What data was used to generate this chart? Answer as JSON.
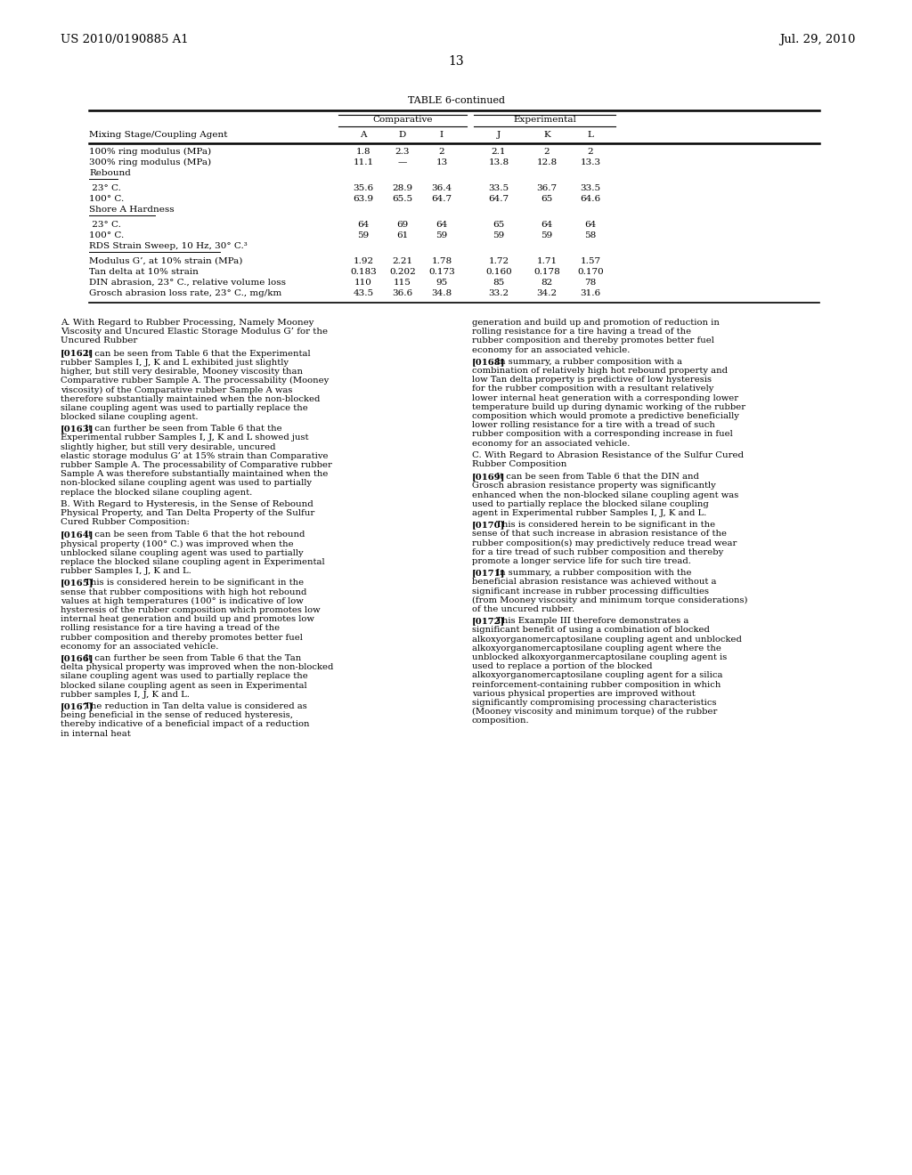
{
  "bg_color": "#ffffff",
  "header_left": "US 2010/0190885 A1",
  "header_right": "Jul. 29, 2010",
  "page_number": "13",
  "table_title": "TABLE 6-continued",
  "table_headers_group1": "Comparative",
  "table_headers_group2": "Experimental",
  "col_headers": [
    "A",
    "D",
    "I",
    "J",
    "K",
    "L"
  ],
  "row_label_col": "Mixing Stage/Coupling Agent",
  "table_rows": [
    {
      "label": "100% ring modulus (MPa)",
      "values": [
        "1.8",
        "2.3",
        "2",
        "2.1",
        "2",
        "2"
      ],
      "section_label": false
    },
    {
      "label": "300% ring modulus (MPa)",
      "values": [
        "11.1",
        "—",
        "13",
        "13.8",
        "12.8",
        "13.3"
      ],
      "section_label": false
    },
    {
      "label": "Rebound",
      "values": [
        "",
        "",
        "",
        "",
        "",
        ""
      ],
      "section_label": true
    },
    {
      "label": " 23° C.",
      "values": [
        "35.6",
        "28.9",
        "36.4",
        "33.5",
        "36.7",
        "33.5"
      ],
      "section_label": false
    },
    {
      "label": "100° C.",
      "values": [
        "63.9",
        "65.5",
        "64.7",
        "64.7",
        "65",
        "64.6"
      ],
      "section_label": false
    },
    {
      "label": "Shore A Hardness",
      "values": [
        "",
        "",
        "",
        "",
        "",
        ""
      ],
      "section_label": true
    },
    {
      "label": " 23° C.",
      "values": [
        "64",
        "69",
        "64",
        "65",
        "64",
        "64"
      ],
      "section_label": false
    },
    {
      "label": "100° C.",
      "values": [
        "59",
        "61",
        "59",
        "59",
        "59",
        "58"
      ],
      "section_label": false
    },
    {
      "label": "RDS Strain Sweep, 10 Hz, 30° C.³",
      "values": [
        "",
        "",
        "",
        "",
        "",
        ""
      ],
      "section_label": true
    },
    {
      "label": "Modulus G’, at 10% strain (MPa)",
      "values": [
        "1.92",
        "2.21",
        "1.78",
        "1.72",
        "1.71",
        "1.57"
      ],
      "section_label": false
    },
    {
      "label": "Tan delta at 10% strain",
      "values": [
        "0.183",
        "0.202",
        "0.173",
        "0.160",
        "0.178",
        "0.170"
      ],
      "section_label": false
    },
    {
      "label": "DIN abrasion, 23° C., relative volume loss",
      "values": [
        "110",
        "115",
        "95",
        "85",
        "82",
        "78"
      ],
      "section_label": false
    },
    {
      "label": "Grosch abrasion loss rate, 23° C., mg/km",
      "values": [
        "43.5",
        "36.6",
        "34.8",
        "33.2",
        "34.2",
        "31.6"
      ],
      "section_label": false
    }
  ],
  "body_left": [
    {
      "type": "section_header",
      "text": "A. With Regard to Rubber Processing, Namely Mooney Viscosity and Uncured Elastic Storage Modulus G’ for the Uncured Rubber"
    },
    {
      "type": "paragraph",
      "tag": "[0162]",
      "text": "It can be seen from Table 6 that the Experimental rubber Samples I, J, K and L exhibited just slightly higher, but still very desirable, Mooney viscosity than Comparative rubber Sample A. The processability (Mooney viscosity) of the Comparative rubber Sample A was therefore substantially maintained when the non-blocked silane coupling agent was used to partially replace the blocked silane coupling agent."
    },
    {
      "type": "paragraph",
      "tag": "[0163]",
      "text": "It can further be seen from Table 6 that the Experimental rubber Samples I, J, K and L showed just slightly higher, but still very desirable, uncured elastic storage modulus G’ at 15% strain than Comparative rubber Sample A. The processability of Comparative rubber Sample A was therefore substantially maintained when the non-blocked silane coupling agent was used to partially replace the blocked silane coupling agent."
    },
    {
      "type": "section_header",
      "text": "B. With Regard to Hysteresis, in the Sense of Rebound Physical Property, and Tan Delta Property of the Sulfur Cured Rubber Composition:"
    },
    {
      "type": "paragraph",
      "tag": "[0164]",
      "text": "It can be seen from Table 6 that the hot rebound physical property (100° C.) was improved when the unblocked silane coupling agent was used to partially replace the blocked silane coupling agent in Experimental rubber Samples I, J, K and L."
    },
    {
      "type": "paragraph",
      "tag": "[0165]",
      "text": "This is considered herein to be significant in the sense that rubber compositions with high hot rebound values at high temperatures (100° is indicative of low hysteresis of the rubber composition which promotes low internal heat generation and build up and promotes low rolling resistance for a tire having a tread of the rubber composition and thereby promotes better fuel economy for an associated vehicle."
    },
    {
      "type": "paragraph",
      "tag": "[0166]",
      "text": "It can further be seen from Table 6 that the Tan delta physical property was improved when the non-blocked silane coupling agent was used to partially replace the blocked silane coupling agent as seen in Experimental rubber samples I, J, K and L."
    },
    {
      "type": "paragraph",
      "tag": "[0167]",
      "text": "The reduction in Tan delta value is considered as being beneficial in the sense of reduced hysteresis, thereby indicative of a beneficial impact of a reduction in internal heat"
    }
  ],
  "body_right": [
    {
      "type": "continuation",
      "tag": "",
      "text": "generation and build up and promotion of reduction in rolling resistance for a tire having a tread of the rubber composition and thereby promotes better fuel economy for an associated vehicle."
    },
    {
      "type": "paragraph",
      "tag": "[0168]",
      "text": "In summary, a rubber composition with a combination of relatively high hot rebound property and low Tan delta property is predictive of low hysteresis for the rubber composition with a resultant relatively lower internal heat generation with a corresponding lower temperature build up during dynamic working of the rubber composition which would promote a predictive beneficially lower rolling resistance for a tire with a tread of such rubber composition with a corresponding increase in fuel economy for an associated vehicle."
    },
    {
      "type": "section_header",
      "text": "C. With Regard to Abrasion Resistance of the Sulfur Cured Rubber Composition"
    },
    {
      "type": "paragraph",
      "tag": "[0169]",
      "text": "It can be seen from Table 6 that the DIN and Grosch abrasion resistance property was significantly enhanced when the non-blocked silane coupling agent was used to partially replace the blocked silane coupling agent in Experimental rubber Samples I, J, K and L."
    },
    {
      "type": "paragraph",
      "tag": "[0170]",
      "text": "This is considered herein to be significant in the sense of that such increase in abrasion resistance of the rubber composition(s) may predictively reduce tread wear for a tire tread of such rubber composition and thereby promote a longer service life for such tire tread."
    },
    {
      "type": "paragraph",
      "tag": "[0171]",
      "text": "In summary, a rubber composition with the beneficial abrasion resistance was achieved without a significant increase in rubber processing difficulties (from Mooney viscosity and minimum torque considerations) of the uncured rubber."
    },
    {
      "type": "paragraph",
      "tag": "[0172]",
      "text": "This Example III therefore demonstrates a significant benefit of using a combination of blocked alkoxyorganomercaptosilane coupling agent and unblocked alkoxyorganomercaptosilane coupling agent where the unblocked alkoxyorganmercaptosilane coupling agent is used to replace a portion of the blocked alkoxyorganomercaptosilane coupling agent for a silica reinforcement-containing rubber composition in which various physical properties are improved without significantly compromising processing characteristics (Mooney viscosity and minimum torque) of the rubber composition."
    }
  ]
}
